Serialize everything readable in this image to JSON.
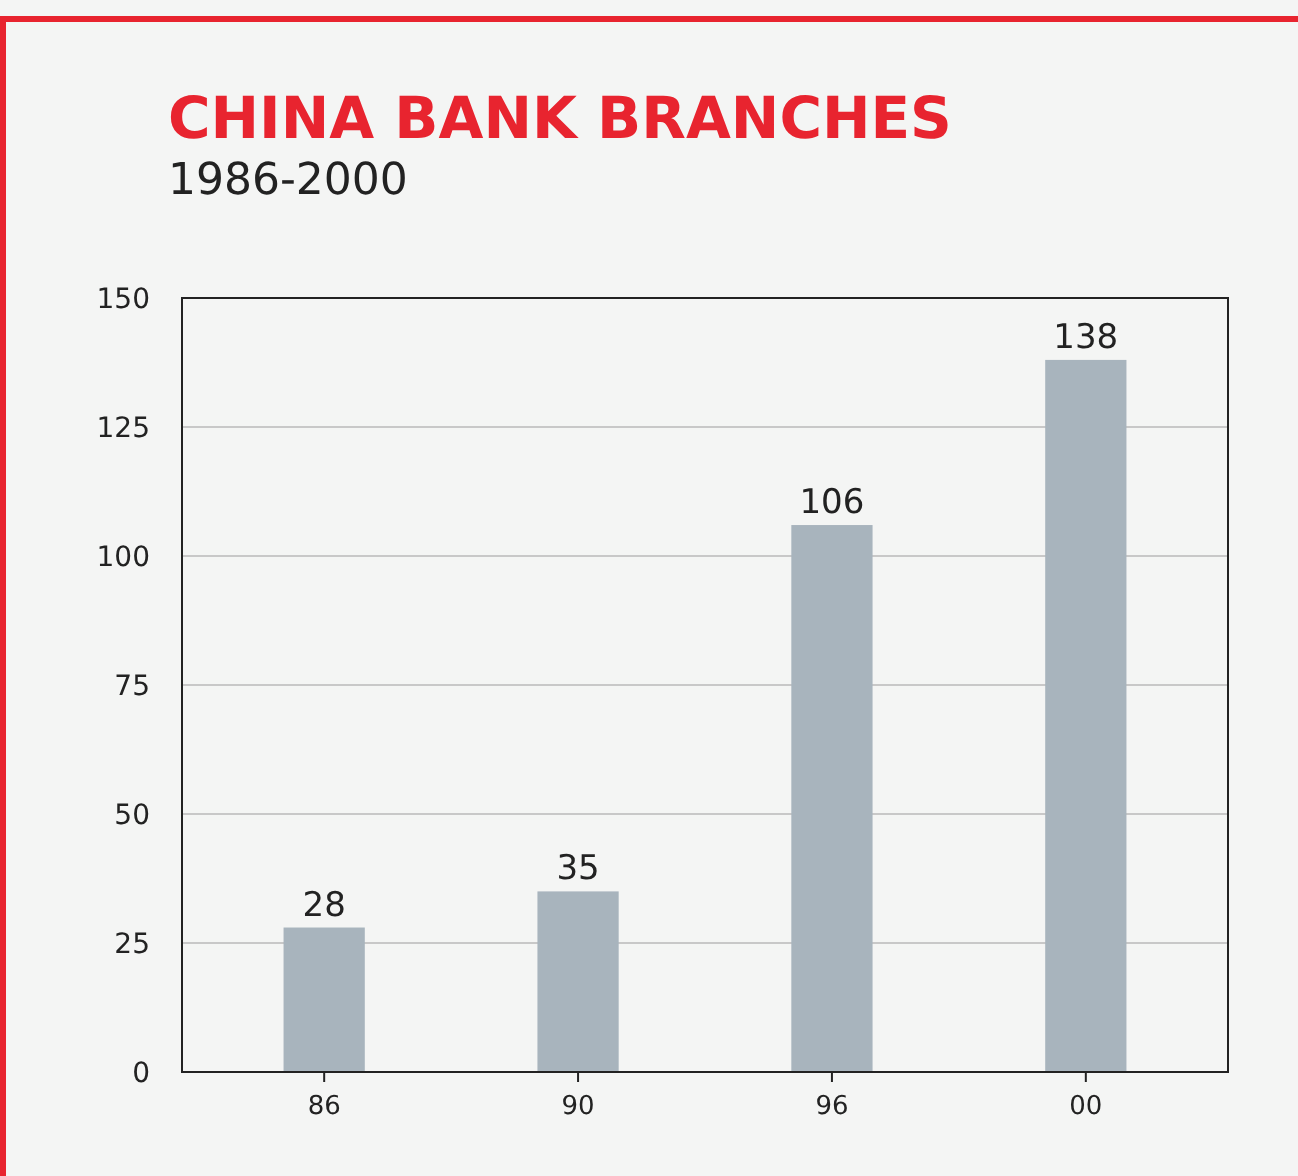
{
  "chart_data": {
    "type": "bar",
    "title": "CHINA BANK BRANCHES",
    "subtitle": "1986-2000",
    "categories": [
      "86",
      "90",
      "96",
      "00"
    ],
    "values": [
      28,
      35,
      106,
      138
    ],
    "color": "#a8b4bd",
    "ylim": [
      0,
      150
    ],
    "yticks": [
      0,
      25,
      50,
      75,
      100,
      125,
      150
    ],
    "grid": "y",
    "data_labels": true
  }
}
